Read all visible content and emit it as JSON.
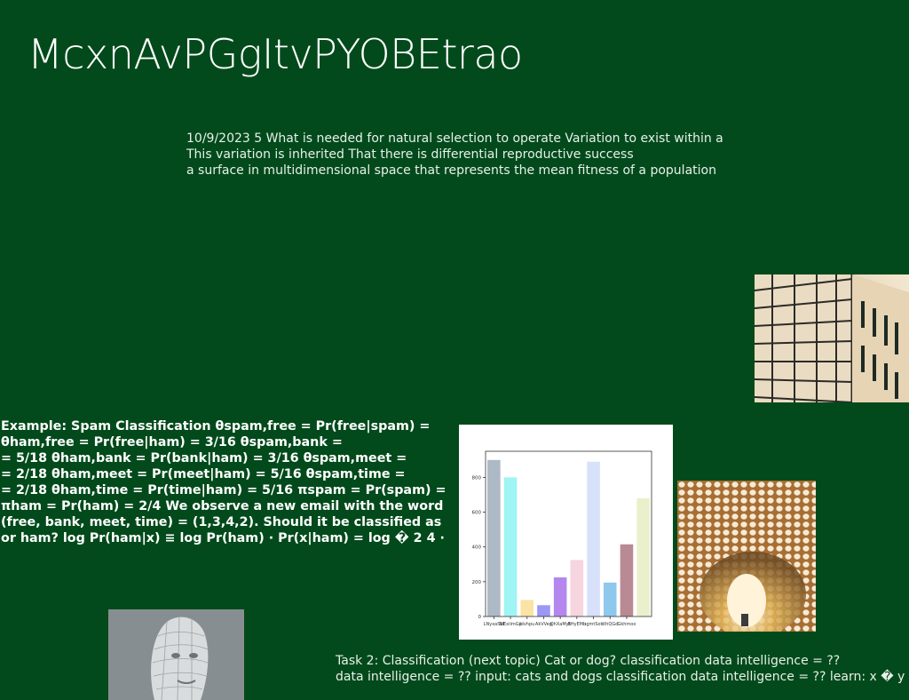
{
  "slide": {
    "title": "McxnAvPGgItvPYOBEtrao",
    "paragraph": [
      "10/9/2023 5 What is needed for natural selection to operate Variation to exist within a",
      "This variation is inherited That there is differential reproductive success",
      "a surface in multidimensional space that represents the mean fitness of a population"
    ],
    "example": [
      "Example: Spam Classification θspam,free = Pr(free|spam) =",
      "θham,free = Pr(free|ham) = 3/16 θspam,bank =",
      "= 5/18 θham,bank = Pr(bank|ham) = 3/16 θspam,meet =",
      "= 2/18 θham,meet = Pr(meet|ham) = 5/16 θspam,time =",
      "= 2/18 θham,time = Pr(time|ham) = 5/16 πspam = Pr(spam) =",
      "πham = Pr(ham) = 2/4 We observe a new email with the word",
      "(free, bank, meet, time) = (1,3,4,2). Should it be classified as",
      "or ham? log Pr(ham|x) ≡ log Pr(ham) · Pr(x|ham) = log � 2 4 ·"
    ],
    "task": [
      "Task 2: Classification (next topic) Cat or dog? classification data intelligence = ??",
      "data intelligence = ?? input: cats and dogs classification data intelligence = ?? learn: x � y"
    ]
  },
  "images": {
    "building": "building-facade-photo",
    "lattice": "lattice-tunnel-photo",
    "face": "wireframe-head-sculpture-photo"
  },
  "chart_data": {
    "type": "bar",
    "categories": [
      "LNyxaSbl",
      "SlExilmGe",
      "Jdvhpu",
      "AkVVeg",
      "QhXaMyt",
      "BHyEMu",
      "hgmtSotl",
      "clhQGd",
      "Gkhmoo",
      "x10"
    ],
    "category_labels": [
      "LNyxaSbl",
      "SlExilmGe",
      "Jdvhpu",
      "AkVVeg",
      "QhXaMyt",
      "BHyEMu",
      "hgmtSotl",
      "clhQGd",
      "Gkhmoo"
    ],
    "values": [
      900,
      800,
      95,
      65,
      225,
      325,
      890,
      195,
      415,
      680
    ],
    "colors": [
      "#aeb9c6",
      "#9ff5f3",
      "#fbe3a6",
      "#9b98f5",
      "#b487ef",
      "#f6d5df",
      "#d7e1fa",
      "#8ec8ec",
      "#b98a93",
      "#eaf0cc"
    ],
    "yticks": [
      0,
      200,
      400,
      600,
      800
    ],
    "ylim": [
      0,
      950
    ]
  }
}
